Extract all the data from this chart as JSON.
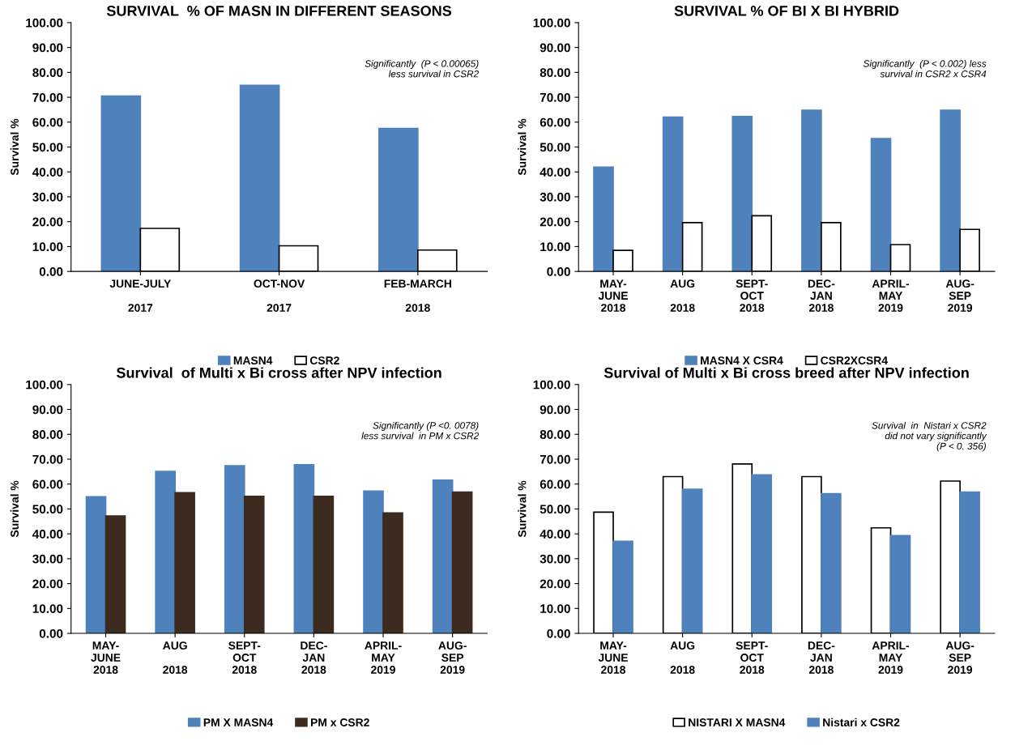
{
  "chart_data": [
    {
      "type": "bar",
      "title": "SURVIVAL  % OF MASN IN DIFFERENT SEASONS",
      "ylabel": "Survival %",
      "categories": [
        "JUNE-JULY\n\n2017",
        "OCT-NOV\n\n2017",
        "FEB-MARCH\n\n2018"
      ],
      "series": [
        {
          "name": "MASN4",
          "color": "#4f81bd",
          "values": [
            70.5,
            74.8,
            57.5
          ]
        },
        {
          "name": "CSR2",
          "color": "#ffffff",
          "values": [
            17.3,
            10.3,
            8.6
          ]
        }
      ],
      "ylim": [
        0,
        100
      ],
      "yticks": [
        {
          "value": 0,
          "label": "0.00"
        },
        {
          "value": 10,
          "label": "10.00"
        },
        {
          "value": 20,
          "label": "20.00"
        },
        {
          "value": 30,
          "label": "30.00"
        },
        {
          "value": 40,
          "label": "40.00"
        },
        {
          "value": 50,
          "label": "50.00"
        },
        {
          "value": 60,
          "label": "60.00"
        },
        {
          "value": 70,
          "label": "70.00"
        },
        {
          "value": 80,
          "label": "80.00"
        },
        {
          "value": 90,
          "label": "90.00"
        },
        {
          "value": 100,
          "label": "100.00"
        }
      ],
      "annotations": [
        "Significantly  (P < 0.00065)\nless survival in CSR2"
      ],
      "legend": "bottom",
      "grid": false
    },
    {
      "type": "bar",
      "title": "SURVIVAL % OF BI X BI HYBRID",
      "ylabel": "Survival %",
      "categories": [
        "MAY-\nJUNE\n2018",
        "AUG\n\n2018",
        "SEPT-\nOCT\n2018",
        "DEC-\nJAN\n2018",
        "APRIL-\nMAY\n2019",
        "AUG-\nSEP\n2019"
      ],
      "series": [
        {
          "name": "MASN4 X CSR4",
          "color": "#4f81bd",
          "values": [
            41.9,
            62.0,
            62.3,
            64.8,
            53.4,
            64.8
          ]
        },
        {
          "name": "CSR2XCSR4",
          "color": "#ffffff",
          "values": [
            8.5,
            19.6,
            22.4,
            19.6,
            10.8,
            16.9
          ]
        }
      ],
      "ylim": [
        0,
        100
      ],
      "yticks": [
        {
          "value": 0,
          "label": "0.00"
        },
        {
          "value": 10,
          "label": "10.00"
        },
        {
          "value": 20,
          "label": "20.00"
        },
        {
          "value": 30,
          "label": "30.00"
        },
        {
          "value": 40,
          "label": "40.00"
        },
        {
          "value": 50,
          "label": "50.00"
        },
        {
          "value": 60,
          "label": "60.00"
        },
        {
          "value": 70,
          "label": "70.00"
        },
        {
          "value": 80,
          "label": "80.00"
        },
        {
          "value": 90,
          "label": "90.00"
        },
        {
          "value": 100,
          "label": "100.00"
        }
      ],
      "annotations": [
        "Significantly  (P < 0.002) less\nsurvival in CSR2 x CSR4"
      ],
      "legend": "bottom",
      "grid": false
    },
    {
      "type": "bar",
      "title": "Survival  of Multi x Bi cross after NPV infection",
      "ylabel": "Survival %",
      "categories": [
        "MAY-\nJUNE\n2018",
        "AUG\n\n2018",
        "SEPT-\nOCT\n2018",
        "DEC-\nJAN\n2018",
        "APRIL-\nMAY\n2019",
        "AUG-\nSEP\n2019"
      ],
      "series": [
        {
          "name": "PM X MASN4",
          "color": "#4f81bd",
          "values": [
            54.9,
            65.1,
            67.4,
            67.8,
            57.2,
            61.6
          ]
        },
        {
          "name": "PM x CSR2",
          "color": "#3d2b1f",
          "values": [
            47.2,
            56.5,
            55.1,
            55.1,
            48.4,
            56.8
          ]
        }
      ],
      "ylim": [
        0,
        100
      ],
      "yticks": [
        {
          "value": 0,
          "label": "0.00"
        },
        {
          "value": 10,
          "label": "10.00"
        },
        {
          "value": 20,
          "label": "20.00"
        },
        {
          "value": 30,
          "label": "30.00"
        },
        {
          "value": 40,
          "label": "40.00"
        },
        {
          "value": 50,
          "label": "50.00"
        },
        {
          "value": 60,
          "label": "60.00"
        },
        {
          "value": 70,
          "label": "70.00"
        },
        {
          "value": 80,
          "label": "80.00"
        },
        {
          "value": 90,
          "label": "90.00"
        },
        {
          "value": 100,
          "label": "100.00"
        }
      ],
      "annotations": [
        "Significantly (P <0. 0078)\nless survival  in PM x CSR2"
      ],
      "legend": "bottom",
      "grid": false
    },
    {
      "type": "bar",
      "title": "Survival of Multi x Bi cross breed after NPV infection",
      "ylabel": "Survival %",
      "categories": [
        "MAY-\nJUNE\n2018",
        "AUG\n\n2018",
        "SEPT-\nOCT\n2018",
        "DEC-\nJAN\n2018",
        "APRIL-\nMAY\n2019",
        "AUG-\nSEP\n2019"
      ],
      "series": [
        {
          "name": "NISTARI X MASN4",
          "color": "#ffffff",
          "values": [
            48.7,
            63.0,
            68.1,
            63.0,
            42.4,
            61.2
          ]
        },
        {
          "name": "Nistari x CSR2",
          "color": "#4f81bd",
          "values": [
            37.0,
            57.9,
            63.7,
            56.1,
            39.3,
            56.8
          ]
        }
      ],
      "ylim": [
        0,
        100
      ],
      "yticks": [
        {
          "value": 0,
          "label": "0.00"
        },
        {
          "value": 10,
          "label": "10.00"
        },
        {
          "value": 20,
          "label": "20.00"
        },
        {
          "value": 30,
          "label": "30.00"
        },
        {
          "value": 40,
          "label": "40.00"
        },
        {
          "value": 50,
          "label": "50.00"
        },
        {
          "value": 60,
          "label": "60.00"
        },
        {
          "value": 70,
          "label": "70.00"
        },
        {
          "value": 80,
          "label": "80.00"
        },
        {
          "value": 90,
          "label": "90.00"
        },
        {
          "value": 100,
          "label": "100.00"
        }
      ],
      "annotations": [
        "Survival  in  Nistari x CSR2\ndid not vary significantly\n(P < 0. 356)"
      ],
      "legend": "bottom",
      "grid": false
    }
  ]
}
